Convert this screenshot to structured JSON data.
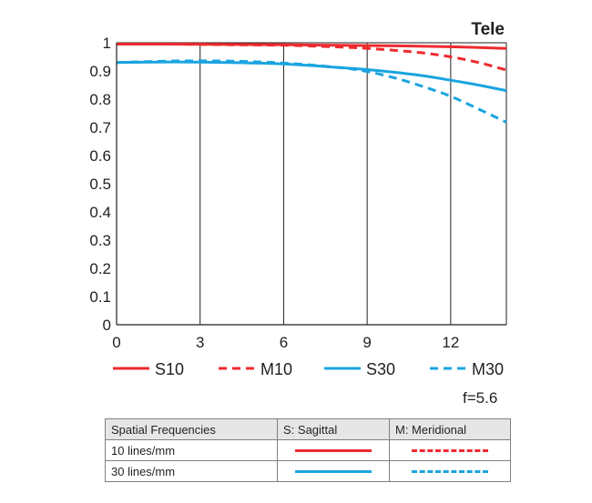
{
  "chart_data": {
    "type": "line",
    "title": "Tele",
    "xlabel": "",
    "ylabel": "",
    "xlim": [
      0,
      14
    ],
    "ylim": [
      0,
      1
    ],
    "xticks": [
      "0",
      "3",
      "6",
      "9",
      "12"
    ],
    "yticks": [
      "0",
      "0.1",
      "0.2",
      "0.3",
      "0.4",
      "0.5",
      "0.6",
      "0.7",
      "0.8",
      "0.9",
      "1"
    ],
    "grid": "vertical",
    "legend_position": "bottom",
    "series": [
      {
        "name": "S10",
        "color": "#ee2a2e",
        "style": "solid",
        "x": [
          0,
          2,
          4,
          6,
          8,
          10,
          12,
          14
        ],
        "y": [
          0.995,
          0.995,
          0.994,
          0.993,
          0.991,
          0.989,
          0.986,
          0.98
        ]
      },
      {
        "name": "M10",
        "color": "#ee2a2e",
        "style": "dashed",
        "x": [
          0,
          2,
          4,
          6,
          8,
          9,
          10,
          11,
          12,
          13,
          14
        ],
        "y": [
          0.995,
          0.995,
          0.993,
          0.991,
          0.985,
          0.98,
          0.973,
          0.964,
          0.95,
          0.93,
          0.903
        ]
      },
      {
        "name": "S30",
        "color": "#1aa4e0",
        "style": "solid",
        "x": [
          0,
          2,
          4,
          6,
          8,
          9,
          10,
          11,
          12,
          13,
          14
        ],
        "y": [
          0.93,
          0.932,
          0.93,
          0.925,
          0.912,
          0.905,
          0.895,
          0.883,
          0.867,
          0.85,
          0.83
        ]
      },
      {
        "name": "M30",
        "color": "#1aa4e0",
        "style": "dashed",
        "x": [
          0,
          2,
          4,
          6,
          8,
          9,
          10,
          11,
          12,
          13,
          14
        ],
        "y": [
          0.93,
          0.935,
          0.935,
          0.928,
          0.912,
          0.898,
          0.875,
          0.845,
          0.81,
          0.765,
          0.718
        ]
      }
    ]
  },
  "aperture_label": "f=5.6",
  "table": {
    "headers": [
      "Spatial Frequencies",
      "S: Sagittal",
      "M: Meridional"
    ],
    "rows": [
      "10 lines/mm",
      "30 lines/mm"
    ]
  }
}
